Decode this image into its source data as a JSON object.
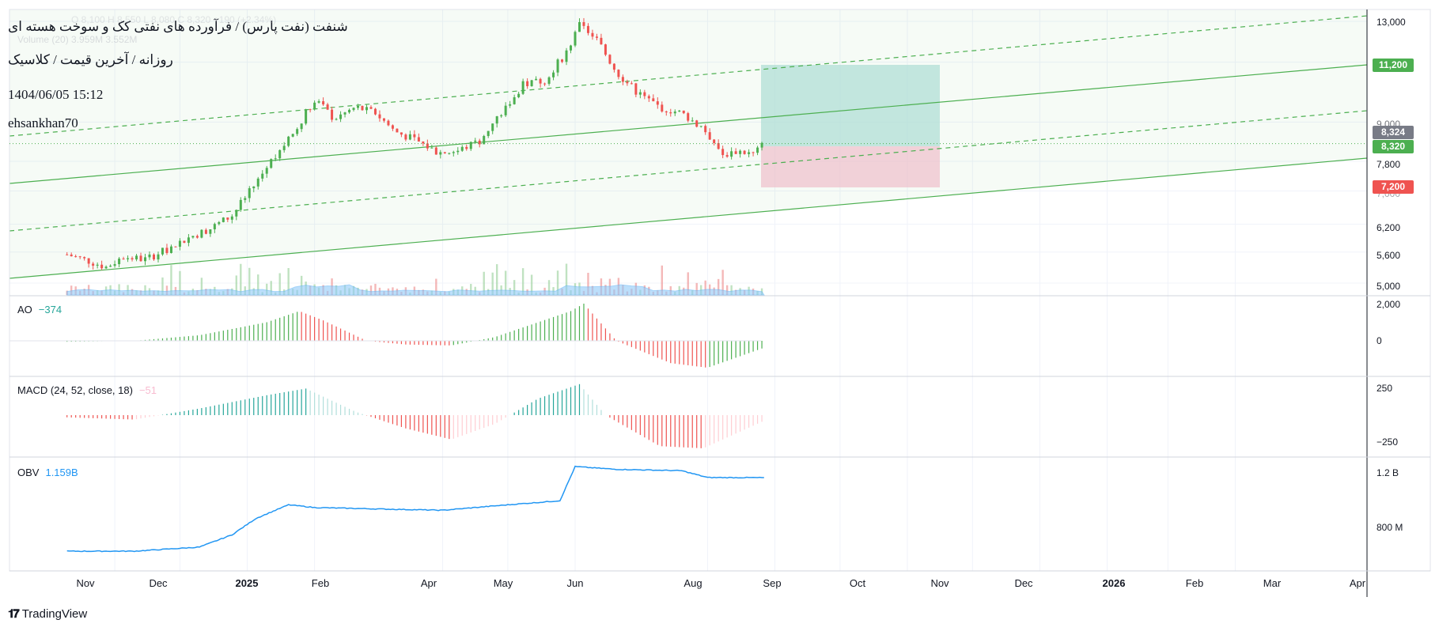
{
  "header": {
    "title": "شنفت (نفت پارس) / فرآورده های نفتی کک و سوخت هسته ای",
    "subtitle": "روزانه / آخرین قیمت / کلاسیک",
    "datetime": "1404/06/05 15:12",
    "author": "ehsankhan70",
    "ohlc_faded": "O  8,100  H  8,550  L  8,080  C  8,320  +190 (+2.34%)",
    "volume_label": "Volume (20)  3.959M  3.552M"
  },
  "colors": {
    "up": "#26a69a",
    "up_candle": "#4caf50",
    "down": "#ef5350",
    "channel": "#4caf50",
    "target_zone": "#b2dfdb",
    "stop_zone": "#f8bbd0",
    "obv_line": "#2196f3",
    "volume_area": "#90caf9"
  },
  "price_axis": {
    "ticks": [
      "13,000",
      "9,000",
      "7,800",
      "7,000",
      "6,200",
      "5,600",
      "5,000"
    ],
    "badges": [
      {
        "label": "11,200",
        "color": "#4caf50"
      },
      {
        "label": "8,324",
        "color": "#787b86"
      },
      {
        "label": "8,320",
        "color": "#4caf50"
      },
      {
        "label": "7,200",
        "color": "#ef5350"
      }
    ]
  },
  "ao": {
    "name": "AO",
    "value": "−374"
  },
  "macd": {
    "name": "MACD (24, 52, close, 18)",
    "value": "−51",
    "ticks": [
      "250",
      "−250"
    ]
  },
  "obv": {
    "name": "OBV",
    "value": "1.159B",
    "ticks": [
      "1.2 B",
      "800 M"
    ]
  },
  "ao_ticks": [
    "2,000",
    "0"
  ],
  "time_axis": {
    "labels": [
      "Nov",
      "Dec",
      "2025",
      "Feb",
      "Apr",
      "May",
      "Jun",
      "Aug",
      "Sep",
      "Oct",
      "Nov",
      "Dec",
      "2026",
      "Feb",
      "Mar",
      "Apr"
    ]
  },
  "branding": {
    "name": "TradingView"
  },
  "chart_data": {
    "type": "candlestick",
    "title": "شنفت (نفت پارس) / فرآورده های نفتی کک و سوخت هسته ای",
    "interval": "روزانه",
    "scale": "log",
    "x_range": [
      "2024-10",
      "2026-04"
    ],
    "ylim": [
      5000,
      13200
    ],
    "last_price": 8320,
    "position": {
      "entry": 8324,
      "target": 11200,
      "stop": 7200
    },
    "price_path": [
      {
        "x": "2024-10-10",
        "y": 5550
      },
      {
        "x": "2024-10-20",
        "y": 5420
      },
      {
        "x": "2024-10-28",
        "y": 5300
      },
      {
        "x": "2024-11-05",
        "y": 5500
      },
      {
        "x": "2024-11-15",
        "y": 5450
      },
      {
        "x": "2024-11-25",
        "y": 5650
      },
      {
        "x": "2024-12-05",
        "y": 5900
      },
      {
        "x": "2024-12-15",
        "y": 6100
      },
      {
        "x": "2024-12-25",
        "y": 6400
      },
      {
        "x": "2025-01-05",
        "y": 7200
      },
      {
        "x": "2025-01-14",
        "y": 8000
      },
      {
        "x": "2025-01-22",
        "y": 8600
      },
      {
        "x": "2025-02-01",
        "y": 9800
      },
      {
        "x": "2025-02-10",
        "y": 9100
      },
      {
        "x": "2025-02-20",
        "y": 9500
      },
      {
        "x": "2025-03-01",
        "y": 9300
      },
      {
        "x": "2025-03-10",
        "y": 8700
      },
      {
        "x": "2025-03-20",
        "y": 8400
      },
      {
        "x": "2025-03-30",
        "y": 8050
      },
      {
        "x": "2025-04-08",
        "y": 8100
      },
      {
        "x": "2025-04-18",
        "y": 8400
      },
      {
        "x": "2025-04-28",
        "y": 9300
      },
      {
        "x": "2025-05-08",
        "y": 10300
      },
      {
        "x": "2025-05-18",
        "y": 10500
      },
      {
        "x": "2025-05-28",
        "y": 11600
      },
      {
        "x": "2025-06-03",
        "y": 12800
      },
      {
        "x": "2025-06-10",
        "y": 12300
      },
      {
        "x": "2025-06-20",
        "y": 10800
      },
      {
        "x": "2025-06-30",
        "y": 10000
      },
      {
        "x": "2025-07-10",
        "y": 9500
      },
      {
        "x": "2025-07-20",
        "y": 9300
      },
      {
        "x": "2025-07-30",
        "y": 8800
      },
      {
        "x": "2025-08-08",
        "y": 8000
      },
      {
        "x": "2025-08-15",
        "y": 8100
      },
      {
        "x": "2025-08-22",
        "y": 8000
      },
      {
        "x": "2025-08-27",
        "y": 8320
      }
    ],
    "ao_path": [
      {
        "x": "2024-10-10",
        "y": -50
      },
      {
        "x": "2024-11-10",
        "y": 0
      },
      {
        "x": "2024-12-10",
        "y": 300
      },
      {
        "x": "2025-01-10",
        "y": 1000
      },
      {
        "x": "2025-01-25",
        "y": 1600
      },
      {
        "x": "2025-02-05",
        "y": 1100
      },
      {
        "x": "2025-02-25",
        "y": 0
      },
      {
        "x": "2025-03-15",
        "y": -200
      },
      {
        "x": "2025-04-05",
        "y": -250
      },
      {
        "x": "2025-04-25",
        "y": 200
      },
      {
        "x": "2025-05-15",
        "y": 1000
      },
      {
        "x": "2025-05-30",
        "y": 1600
      },
      {
        "x": "2025-06-05",
        "y": 2000
      },
      {
        "x": "2025-06-20",
        "y": 0
      },
      {
        "x": "2025-07-15",
        "y": -1200
      },
      {
        "x": "2025-08-01",
        "y": -1450
      },
      {
        "x": "2025-08-27",
        "y": -374
      }
    ],
    "macd_path": [
      {
        "x": "2024-10-10",
        "y": -20
      },
      {
        "x": "2024-11-10",
        "y": -40
      },
      {
        "x": "2024-12-10",
        "y": 60
      },
      {
        "x": "2025-01-10",
        "y": 180
      },
      {
        "x": "2025-01-28",
        "y": 240
      },
      {
        "x": "2025-02-20",
        "y": 30
      },
      {
        "x": "2025-03-15",
        "y": -120
      },
      {
        "x": "2025-04-05",
        "y": -220
      },
      {
        "x": "2025-04-25",
        "y": -80
      },
      {
        "x": "2025-05-15",
        "y": 150
      },
      {
        "x": "2025-06-03",
        "y": 280
      },
      {
        "x": "2025-06-15",
        "y": 0
      },
      {
        "x": "2025-07-10",
        "y": -280
      },
      {
        "x": "2025-07-30",
        "y": -300
      },
      {
        "x": "2025-08-27",
        "y": -51
      }
    ],
    "obv_path": [
      {
        "x": "2024-10-10",
        "y": 0.62
      },
      {
        "x": "2024-11-10",
        "y": 0.62
      },
      {
        "x": "2024-12-10",
        "y": 0.65
      },
      {
        "x": "2024-12-25",
        "y": 0.74
      },
      {
        "x": "2025-01-05",
        "y": 0.86
      },
      {
        "x": "2025-01-20",
        "y": 0.96
      },
      {
        "x": "2025-02-01",
        "y": 0.94
      },
      {
        "x": "2025-03-01",
        "y": 0.93
      },
      {
        "x": "2025-04-01",
        "y": 0.92
      },
      {
        "x": "2025-05-01",
        "y": 0.96
      },
      {
        "x": "2025-05-25",
        "y": 0.99
      },
      {
        "x": "2025-06-01",
        "y": 1.24
      },
      {
        "x": "2025-06-20",
        "y": 1.22
      },
      {
        "x": "2025-07-20",
        "y": 1.21
      },
      {
        "x": "2025-08-01",
        "y": 1.16
      },
      {
        "x": "2025-08-27",
        "y": 1.159
      }
    ]
  }
}
